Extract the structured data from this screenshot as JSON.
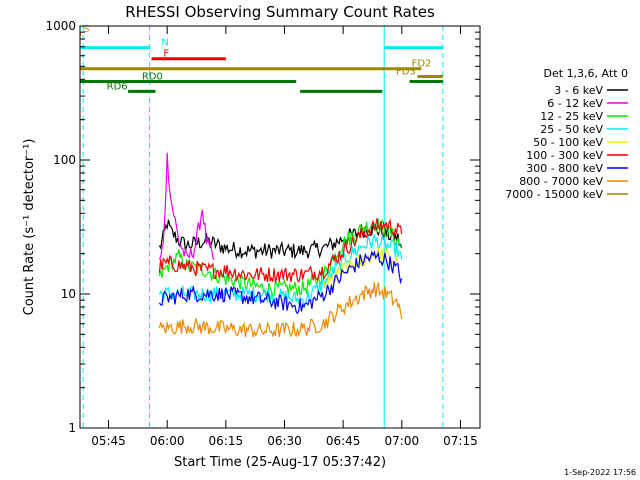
{
  "chart_data": {
    "type": "line",
    "title": "RHESSI Observing Summary Count Rates",
    "xlabel": "Start Time (25-Aug-17 05:37:42)",
    "ylabel": "Count Rate (s⁻¹ detector⁻¹)",
    "footer": "1-Sep-2022 17:56",
    "y_scale": "log",
    "ylim": [
      1,
      1000
    ],
    "xlim": [
      "05:37:42",
      "07:20:00"
    ],
    "x_ticks": [
      "05:45",
      "06:00",
      "06:15",
      "06:30",
      "06:45",
      "07:00",
      "07:15"
    ],
    "y_ticks": [
      "1",
      "10",
      "100",
      "1000"
    ],
    "legend_title": "Det 1,3,6, Att 0",
    "legend_placement": "right",
    "series": [
      {
        "name": "3 - 6 keV",
        "color": "#000000",
        "x": [
          "05:58",
          "05:59",
          "06:00",
          "06:01",
          "06:03",
          "06:05",
          "06:10",
          "06:15",
          "06:20",
          "06:25",
          "06:30",
          "06:35",
          "06:40",
          "06:43",
          "06:45",
          "06:48",
          "06:50",
          "06:53",
          "06:56",
          "06:59",
          "07:00"
        ],
        "y": [
          22,
          26,
          34,
          29,
          25,
          23,
          25,
          22,
          21,
          21,
          21,
          21,
          22,
          24,
          26,
          28,
          30,
          31,
          28,
          26,
          22
        ]
      },
      {
        "name": "6 - 12 keV",
        "color": "#ee00ee",
        "x": [
          "05:58",
          "05:59",
          "06:00",
          "06:01",
          "06:03",
          "06:05",
          "06:07",
          "06:08",
          "06:09",
          "06:10",
          "06:12"
        ],
        "y": [
          17,
          23,
          105,
          50,
          25,
          18,
          22,
          30,
          44,
          25,
          18
        ]
      },
      {
        "name": "12 - 25 keV",
        "color": "#00ee00",
        "x": [
          "05:58",
          "06:00",
          "06:03",
          "06:05",
          "06:10",
          "06:15",
          "06:20",
          "06:25",
          "06:30",
          "06:35",
          "06:40",
          "06:45",
          "06:50",
          "06:53",
          "06:56",
          "06:59",
          "07:00"
        ],
        "y": [
          13,
          16,
          19,
          16,
          15,
          13,
          12,
          11,
          11,
          11,
          14,
          24,
          31,
          34,
          30,
          25,
          22
        ]
      },
      {
        "name": "25 - 50 keV",
        "color": "#00eeee",
        "x": [
          "05:58",
          "06:05",
          "06:15",
          "06:25",
          "06:35",
          "06:40",
          "06:45",
          "06:50",
          "06:53",
          "06:56",
          "06:59",
          "07:00"
        ],
        "y": [
          10,
          10,
          10,
          10,
          9,
          12,
          18,
          23,
          25,
          23,
          21,
          18
        ]
      },
      {
        "name": "50 - 100 keV",
        "color": "#eeee00",
        "x": [
          "06:40",
          "06:45",
          "06:50",
          "06:53",
          "06:56",
          "06:59"
        ],
        "y": [
          11,
          15,
          18,
          20,
          19,
          17
        ]
      },
      {
        "name": "100 - 300 keV",
        "color": "#ee0000",
        "x": [
          "05:58",
          "06:00",
          "06:05",
          "06:10",
          "06:15",
          "06:20",
          "06:25",
          "06:30",
          "06:35",
          "06:40",
          "06:45",
          "06:50",
          "06:53",
          "06:56",
          "06:59",
          "07:00"
        ],
        "y": [
          16,
          17,
          16,
          15,
          15,
          14,
          14,
          14,
          14,
          15,
          21,
          28,
          32,
          33,
          30,
          28
        ]
      },
      {
        "name": "300 - 800 keV",
        "color": "#0000ee",
        "x": [
          "05:58",
          "06:05",
          "06:15",
          "06:25",
          "06:35",
          "06:40",
          "06:45",
          "06:50",
          "06:53",
          "06:56",
          "06:59",
          "07:00"
        ],
        "y": [
          9,
          10,
          10,
          9,
          8,
          10,
          14,
          18,
          19,
          18,
          15,
          13
        ]
      },
      {
        "name": "800 - 7000 keV",
        "color": "#ee8800",
        "x": [
          "05:58",
          "06:05",
          "06:15",
          "06:25",
          "06:35",
          "06:40",
          "06:45",
          "06:50",
          "06:53",
          "06:56",
          "06:59",
          "07:00"
        ],
        "y": [
          5.5,
          5.8,
          5.5,
          5.3,
          5.5,
          6,
          8,
          10,
          11,
          10,
          8.5,
          6.5
        ]
      },
      {
        "name": "7000 - 15000 keV",
        "color": "#998800",
        "x": [],
        "y": []
      }
    ],
    "flag_bars": [
      {
        "label": "S",
        "color": "#ee8800",
        "label_x": "05:38",
        "segments": [
          [
            "05:37:42",
            "05:38"
          ]
        ],
        "level": 870
      },
      {
        "label": "N",
        "color": "#00eeee",
        "label_x": "05:58",
        "segments": [
          [
            "05:37:42",
            "05:55:30"
          ],
          [
            "06:55:30",
            "07:10:30"
          ]
        ],
        "level": 690
      },
      {
        "label": "F",
        "color": "#ee0000",
        "label_x": "05:58:30",
        "segments": [
          [
            "05:56",
            "06:15"
          ]
        ],
        "level": 570
      },
      {
        "label": "FD2",
        "color": "#998800",
        "label_x": "07:02",
        "segments": [
          [
            "05:37:42",
            "07:05"
          ]
        ],
        "level": 480
      },
      {
        "label": "FD3",
        "color": "#998800",
        "label_x": "06:58",
        "segments": [
          [
            "07:04",
            "07:10:30"
          ]
        ],
        "level": 420
      },
      {
        "label": "RD0",
        "color": "#007700",
        "label_x": "05:53",
        "segments": [
          [
            "05:37:42",
            "06:33"
          ],
          [
            "07:02",
            "07:10:30"
          ]
        ],
        "level": 385
      },
      {
        "label": "RD6",
        "color": "#007700",
        "label_x": "05:44",
        "segments": [
          [
            "05:50",
            "05:57"
          ],
          [
            "06:34",
            "06:55"
          ]
        ],
        "level": 325
      }
    ],
    "vertical_markers": [
      {
        "x": "05:38:30",
        "color": "#00eeee",
        "style": "dashed"
      },
      {
        "x": "05:55:30",
        "color": "#00eeee",
        "style": "dashed"
      },
      {
        "x": "06:55:30",
        "color": "#00eeee",
        "style": "solid"
      },
      {
        "x": "07:10:30",
        "color": "#00eeee",
        "style": "dashed"
      }
    ]
  }
}
